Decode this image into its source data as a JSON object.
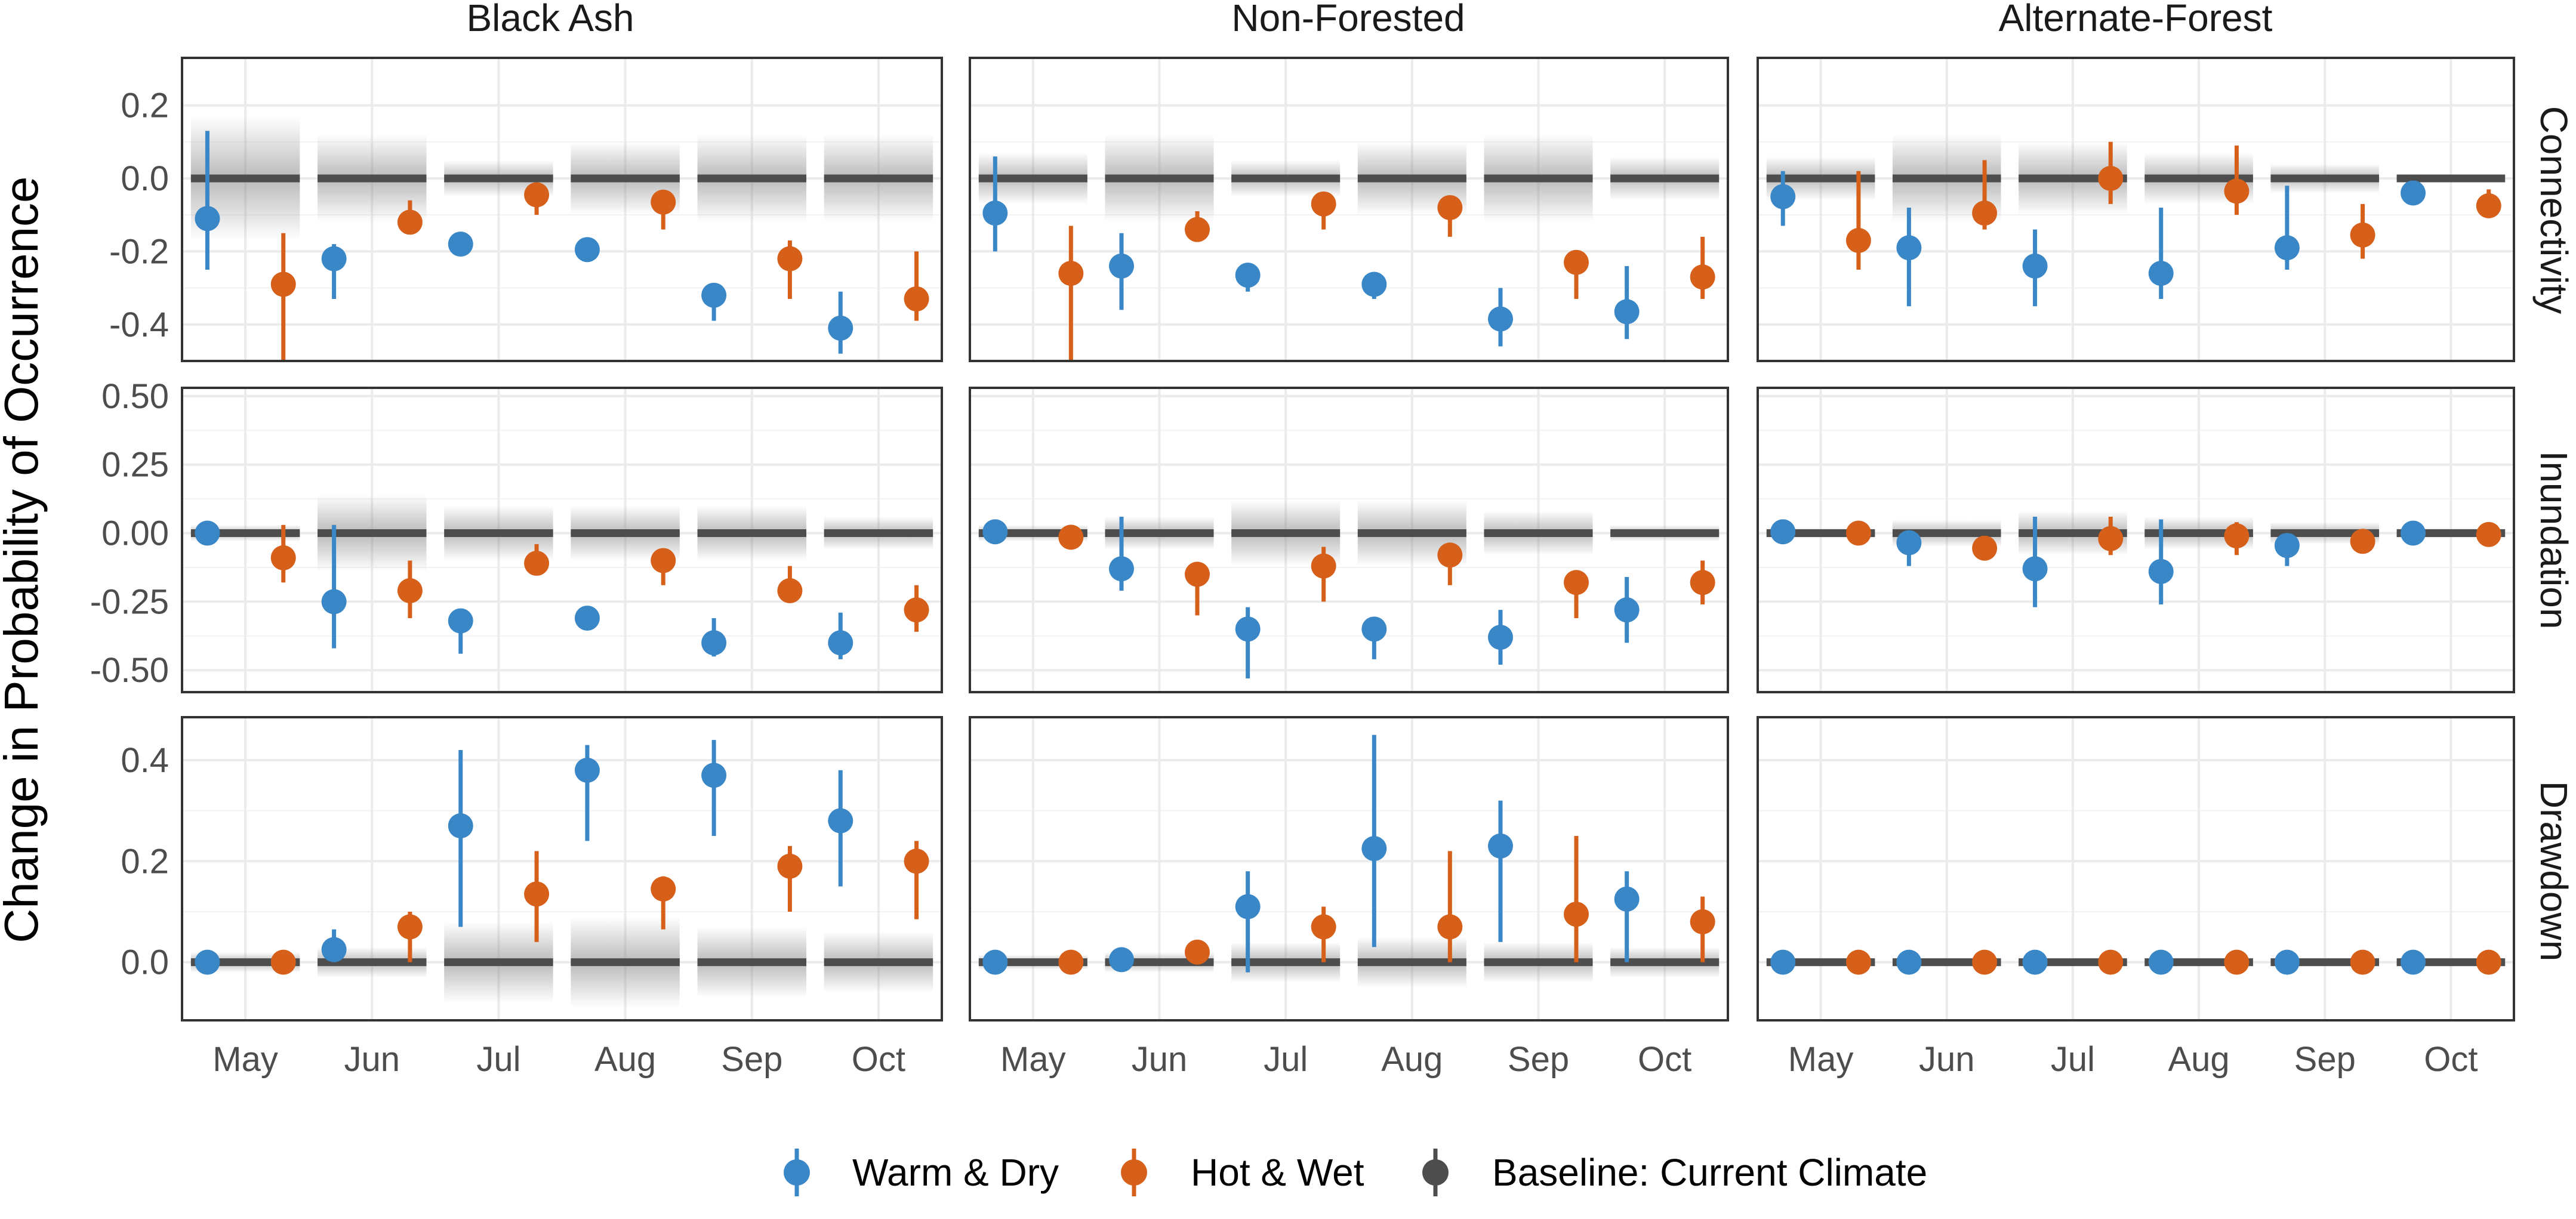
{
  "chart_data": {
    "type": "scatter",
    "ylabel": "Change in Probability of Occurrence",
    "columns": [
      "Black Ash",
      "Non-Forested",
      "Alternate-Forest"
    ],
    "rows": [
      "Connectivity",
      "Inundation",
      "Drawdown"
    ],
    "categories": [
      "May",
      "Jun",
      "Jul",
      "Aug",
      "Sep",
      "Oct"
    ],
    "row_axes": [
      {
        "ylim": [
          -0.5,
          0.33
        ],
        "ticks": [
          0.2,
          0.0,
          -0.2,
          -0.4
        ],
        "tick_labels": [
          "0.2",
          "0.0",
          "-0.2",
          "-0.4"
        ]
      },
      {
        "ylim": [
          -0.58,
          0.53
        ],
        "ticks": [
          0.5,
          0.25,
          0.0,
          -0.25,
          -0.5
        ],
        "tick_labels": [
          "0.50",
          "0.25",
          "0.00",
          "-0.25",
          "-0.50"
        ]
      },
      {
        "ylim": [
          -0.115,
          0.485
        ],
        "ticks": [
          0.4,
          0.2,
          0.0
        ],
        "tick_labels": [
          "0.4",
          "0.2",
          "0.0"
        ]
      }
    ],
    "legend": {
      "position": "bottom",
      "entries": [
        {
          "key": "warm",
          "label": "Warm & Dry",
          "color": "#3a87c8"
        },
        {
          "key": "hot",
          "label": "Hot & Wet",
          "color": "#d65f1a"
        },
        {
          "key": "base",
          "label": "Baseline: Current Climate",
          "color": "#4d4d4d"
        }
      ]
    },
    "series_colors": {
      "warm": "#3a87c8",
      "hot": "#d65f1a",
      "base": "#4d4d4d"
    },
    "panels": [
      {
        "row": 0,
        "col": 0,
        "baseline_spread": [
          0.17,
          0.12,
          0.05,
          0.1,
          0.12,
          0.12
        ],
        "warm": [
          [
            -0.11,
            -0.25,
            0.13
          ],
          [
            -0.22,
            -0.33,
            -0.18
          ],
          [
            -0.18,
            -0.2,
            -0.16
          ],
          [
            -0.195,
            -0.21,
            -0.18
          ],
          [
            -0.32,
            -0.39,
            -0.29
          ],
          [
            -0.41,
            -0.48,
            -0.31
          ]
        ],
        "hot": [
          [
            -0.29,
            -0.5,
            -0.15
          ],
          [
            -0.12,
            -0.14,
            -0.06
          ],
          [
            -0.045,
            -0.1,
            -0.02
          ],
          [
            -0.065,
            -0.14,
            -0.04
          ],
          [
            -0.22,
            -0.33,
            -0.17
          ],
          [
            -0.33,
            -0.39,
            -0.2
          ]
        ]
      },
      {
        "row": 0,
        "col": 1,
        "baseline_spread": [
          0.07,
          0.12,
          0.05,
          0.1,
          0.12,
          0.06
        ],
        "warm": [
          [
            -0.095,
            -0.2,
            0.06
          ],
          [
            -0.24,
            -0.36,
            -0.15
          ],
          [
            -0.265,
            -0.31,
            -0.24
          ],
          [
            -0.29,
            -0.33,
            -0.27
          ],
          [
            -0.385,
            -0.46,
            -0.3
          ],
          [
            -0.365,
            -0.44,
            -0.24
          ]
        ],
        "hot": [
          [
            -0.26,
            -0.5,
            -0.13
          ],
          [
            -0.14,
            -0.16,
            -0.09
          ],
          [
            -0.07,
            -0.14,
            -0.06
          ],
          [
            -0.08,
            -0.16,
            -0.06
          ],
          [
            -0.23,
            -0.33,
            -0.2
          ],
          [
            -0.27,
            -0.33,
            -0.16
          ]
        ]
      },
      {
        "row": 0,
        "col": 2,
        "baseline_spread": [
          0.06,
          0.12,
          0.1,
          0.07,
          0.04,
          0.01
        ],
        "warm": [
          [
            -0.05,
            -0.13,
            0.02
          ],
          [
            -0.19,
            -0.35,
            -0.08
          ],
          [
            -0.24,
            -0.35,
            -0.14
          ],
          [
            -0.26,
            -0.33,
            -0.08
          ],
          [
            -0.19,
            -0.25,
            -0.02
          ],
          [
            -0.04,
            -0.06,
            -0.01
          ]
        ],
        "hot": [
          [
            -0.17,
            -0.25,
            0.02
          ],
          [
            -0.095,
            -0.14,
            0.05
          ],
          [
            0.0,
            -0.07,
            0.1
          ],
          [
            -0.035,
            -0.1,
            0.09
          ],
          [
            -0.155,
            -0.22,
            -0.07
          ],
          [
            -0.075,
            -0.1,
            -0.03
          ]
        ]
      },
      {
        "row": 1,
        "col": 0,
        "baseline_spread": [
          0.03,
          0.14,
          0.1,
          0.1,
          0.1,
          0.06
        ],
        "warm": [
          [
            0.0,
            -0.02,
            0.02
          ],
          [
            -0.25,
            -0.42,
            0.03
          ],
          [
            -0.32,
            -0.44,
            -0.3
          ],
          [
            -0.31,
            -0.33,
            -0.29
          ],
          [
            -0.4,
            -0.45,
            -0.31
          ],
          [
            -0.4,
            -0.46,
            -0.29
          ]
        ],
        "hot": [
          [
            -0.09,
            -0.18,
            0.03
          ],
          [
            -0.21,
            -0.31,
            -0.1
          ],
          [
            -0.11,
            -0.15,
            -0.04
          ],
          [
            -0.1,
            -0.19,
            -0.08
          ],
          [
            -0.21,
            -0.25,
            -0.12
          ],
          [
            -0.28,
            -0.36,
            -0.19
          ]
        ]
      },
      {
        "row": 1,
        "col": 1,
        "baseline_spread": [
          0.03,
          0.06,
          0.12,
          0.12,
          0.08,
          0.03
        ],
        "warm": [
          [
            0.005,
            -0.01,
            0.02
          ],
          [
            -0.13,
            -0.21,
            0.06
          ],
          [
            -0.35,
            -0.53,
            -0.27
          ],
          [
            -0.35,
            -0.46,
            -0.32
          ],
          [
            -0.38,
            -0.48,
            -0.28
          ],
          [
            -0.28,
            -0.4,
            -0.16
          ]
        ],
        "hot": [
          [
            -0.015,
            -0.03,
            0.0
          ],
          [
            -0.15,
            -0.3,
            -0.12
          ],
          [
            -0.12,
            -0.25,
            -0.05
          ],
          [
            -0.08,
            -0.19,
            -0.04
          ],
          [
            -0.18,
            -0.31,
            -0.15
          ],
          [
            -0.18,
            -0.26,
            -0.1
          ]
        ]
      },
      {
        "row": 1,
        "col": 2,
        "baseline_spread": [
          0.02,
          0.05,
          0.08,
          0.06,
          0.04,
          0.02
        ],
        "warm": [
          [
            0.005,
            -0.01,
            0.02
          ],
          [
            -0.035,
            -0.12,
            0.01
          ],
          [
            -0.13,
            -0.27,
            0.06
          ],
          [
            -0.14,
            -0.26,
            0.05
          ],
          [
            -0.045,
            -0.12,
            -0.01
          ],
          [
            0.0,
            -0.02,
            0.01
          ]
        ],
        "hot": [
          [
            0.0,
            -0.015,
            0.015
          ],
          [
            -0.055,
            -0.08,
            -0.02
          ],
          [
            -0.02,
            -0.08,
            0.06
          ],
          [
            -0.01,
            -0.08,
            0.04
          ],
          [
            -0.03,
            -0.05,
            -0.01
          ],
          [
            -0.005,
            -0.02,
            0.01
          ]
        ]
      },
      {
        "row": 2,
        "col": 0,
        "baseline_spread": [
          0.02,
          0.03,
          0.08,
          0.09,
          0.07,
          0.06
        ],
        "warm": [
          [
            0.0,
            -0.01,
            0.01
          ],
          [
            0.025,
            0.0,
            0.065
          ],
          [
            0.27,
            0.07,
            0.42
          ],
          [
            0.38,
            0.24,
            0.43
          ],
          [
            0.37,
            0.25,
            0.44
          ],
          [
            0.28,
            0.15,
            0.38
          ]
        ],
        "hot": [
          [
            0.0,
            -0.01,
            0.01
          ],
          [
            0.07,
            0.0,
            0.1
          ],
          [
            0.135,
            0.04,
            0.22
          ],
          [
            0.145,
            0.065,
            0.17
          ],
          [
            0.19,
            0.1,
            0.23
          ],
          [
            0.2,
            0.085,
            0.24
          ]
        ]
      },
      {
        "row": 2,
        "col": 1,
        "baseline_spread": [
          0.015,
          0.02,
          0.04,
          0.05,
          0.04,
          0.03
        ],
        "warm": [
          [
            0.0,
            -0.01,
            0.01
          ],
          [
            0.005,
            -0.005,
            0.015
          ],
          [
            0.11,
            -0.02,
            0.18
          ],
          [
            0.225,
            0.03,
            0.45
          ],
          [
            0.23,
            0.04,
            0.32
          ],
          [
            0.125,
            0.0,
            0.18
          ]
        ],
        "hot": [
          [
            0.0,
            -0.01,
            0.01
          ],
          [
            0.02,
            0.0,
            0.03
          ],
          [
            0.07,
            0.0,
            0.11
          ],
          [
            0.07,
            0.0,
            0.22
          ],
          [
            0.095,
            0.0,
            0.25
          ],
          [
            0.08,
            0.0,
            0.13
          ]
        ]
      },
      {
        "row": 2,
        "col": 2,
        "baseline_spread": [
          0.01,
          0.01,
          0.01,
          0.01,
          0.01,
          0.01
        ],
        "warm": [
          [
            0.0,
            -0.005,
            0.005
          ],
          [
            0.0,
            -0.005,
            0.005
          ],
          [
            0.0,
            -0.005,
            0.005
          ],
          [
            0.0,
            -0.005,
            0.005
          ],
          [
            0.0,
            -0.005,
            0.005
          ],
          [
            0.0,
            -0.005,
            0.005
          ]
        ],
        "hot": [
          [
            0.0,
            -0.005,
            0.005
          ],
          [
            0.0,
            -0.005,
            0.005
          ],
          [
            0.0,
            -0.005,
            0.005
          ],
          [
            0.0,
            -0.005,
            0.005
          ],
          [
            0.0,
            -0.005,
            0.005
          ],
          [
            0.0,
            -0.005,
            0.005
          ]
        ]
      }
    ]
  }
}
